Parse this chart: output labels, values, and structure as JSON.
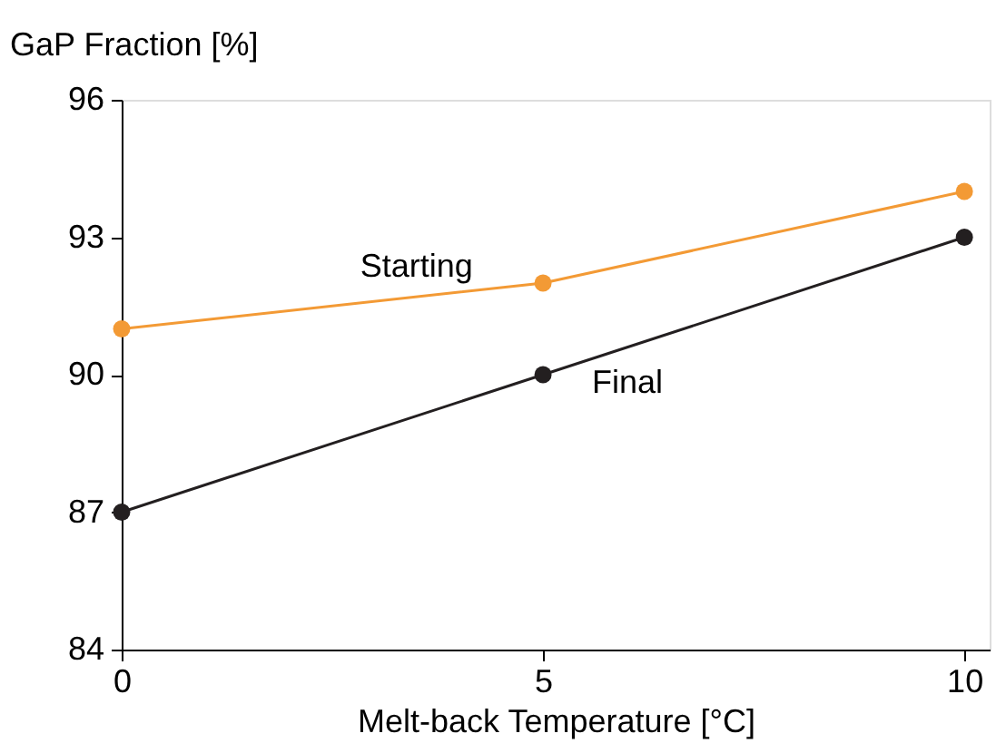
{
  "chart_data": {
    "type": "line",
    "xlabel": "Melt-back Temperature [°C]",
    "ylabel": "GaP Fraction [%]",
    "x": [
      0,
      5,
      10
    ],
    "series": [
      {
        "name": "Starting",
        "color": "#f39a35",
        "values": [
          91,
          92,
          94
        ]
      },
      {
        "name": "Final",
        "color": "#231f20",
        "values": [
          87,
          90,
          93
        ]
      }
    ],
    "xlim": [
      0,
      10.3
    ],
    "xticks": [
      0,
      5,
      10
    ],
    "ylim": [
      84,
      96
    ],
    "yticks": [
      84,
      87,
      90,
      93,
      96
    ],
    "marker": "circle",
    "line_style": "solid",
    "grid": false,
    "legend": false
  }
}
